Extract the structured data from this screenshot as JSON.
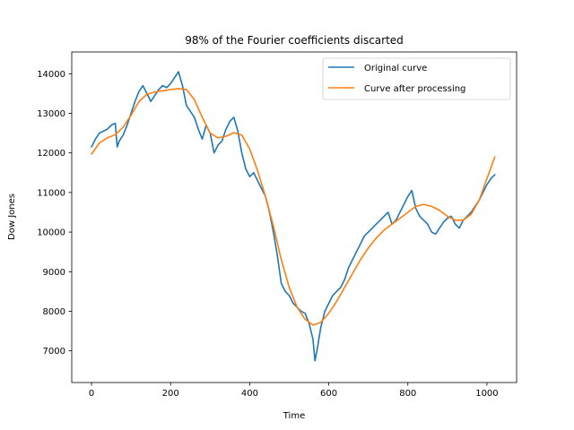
{
  "chart_data": {
    "type": "line",
    "title": "98% of the Fourier coefficients discarted",
    "xlabel": "Time",
    "ylabel": "Dow Jones",
    "xlim": [
      -50,
      1075
    ],
    "ylim": [
      6200,
      14550
    ],
    "xticks": [
      0,
      200,
      400,
      600,
      800,
      1000
    ],
    "yticks": [
      7000,
      8000,
      9000,
      10000,
      11000,
      12000,
      13000,
      14000
    ],
    "grid": false,
    "legend_position": "top-right",
    "series": [
      {
        "name": "Original curve",
        "color": "#1f77b4",
        "x": [
          0,
          10,
          20,
          30,
          40,
          50,
          60,
          65,
          70,
          80,
          90,
          100,
          110,
          120,
          130,
          140,
          150,
          160,
          170,
          180,
          190,
          200,
          210,
          220,
          230,
          240,
          250,
          260,
          270,
          280,
          290,
          300,
          310,
          320,
          330,
          340,
          350,
          360,
          370,
          380,
          390,
          400,
          410,
          420,
          430,
          440,
          450,
          460,
          470,
          480,
          490,
          500,
          510,
          520,
          530,
          540,
          550,
          560,
          565,
          570,
          580,
          590,
          600,
          610,
          620,
          630,
          640,
          650,
          660,
          670,
          680,
          690,
          700,
          710,
          720,
          730,
          740,
          750,
          760,
          770,
          780,
          790,
          800,
          810,
          820,
          830,
          840,
          850,
          860,
          870,
          880,
          890,
          900,
          910,
          920,
          930,
          940,
          950,
          960,
          970,
          980,
          990,
          1000,
          1010,
          1020
        ],
        "y": [
          12150,
          12350,
          12500,
          12550,
          12600,
          12700,
          12750,
          12150,
          12300,
          12450,
          12700,
          13000,
          13300,
          13550,
          13700,
          13500,
          13300,
          13450,
          13600,
          13700,
          13650,
          13750,
          13900,
          14050,
          13700,
          13200,
          13050,
          12900,
          12600,
          12350,
          12700,
          12500,
          12000,
          12200,
          12300,
          12600,
          12800,
          12900,
          12550,
          12000,
          11600,
          11400,
          11500,
          11300,
          11100,
          10900,
          10500,
          10000,
          9400,
          8700,
          8500,
          8400,
          8200,
          8100,
          8000,
          7950,
          7700,
          7300,
          6750,
          7000,
          7600,
          8000,
          8200,
          8400,
          8500,
          8600,
          8800,
          9100,
          9300,
          9500,
          9700,
          9900,
          10000,
          10100,
          10200,
          10300,
          10400,
          10500,
          10200,
          10300,
          10500,
          10700,
          10900,
          11050,
          10600,
          10400,
          10300,
          10200,
          10000,
          9950,
          10100,
          10250,
          10350,
          10400,
          10200,
          10100,
          10300,
          10400,
          10500,
          10650,
          10800,
          11000,
          11200,
          11350,
          11450
        ]
      },
      {
        "name": "Curve after processing",
        "color": "#ff7f0e",
        "x": [
          0,
          20,
          40,
          60,
          80,
          100,
          120,
          140,
          160,
          180,
          200,
          220,
          240,
          260,
          280,
          300,
          320,
          340,
          360,
          380,
          400,
          420,
          440,
          460,
          480,
          500,
          520,
          540,
          560,
          580,
          600,
          620,
          640,
          660,
          680,
          700,
          720,
          740,
          760,
          780,
          800,
          820,
          840,
          860,
          880,
          900,
          920,
          940,
          960,
          980,
          1000,
          1020
        ],
        "y": [
          11970,
          12250,
          12380,
          12460,
          12650,
          12950,
          13300,
          13480,
          13540,
          13570,
          13600,
          13620,
          13600,
          13350,
          12900,
          12500,
          12380,
          12420,
          12510,
          12450,
          12100,
          11550,
          10900,
          10150,
          9300,
          8600,
          8100,
          7800,
          7650,
          7720,
          7950,
          8250,
          8600,
          8950,
          9300,
          9600,
          9850,
          10050,
          10200,
          10350,
          10500,
          10650,
          10700,
          10650,
          10550,
          10400,
          10300,
          10300,
          10450,
          10800,
          11350,
          11900
        ]
      }
    ]
  }
}
